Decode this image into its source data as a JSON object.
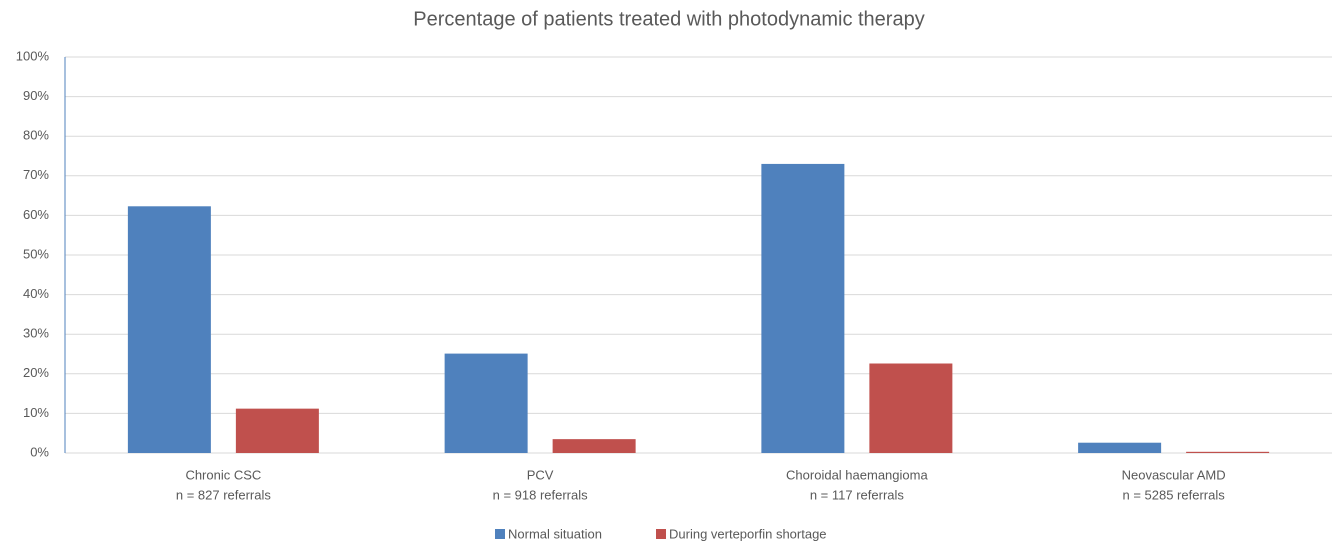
{
  "chart_data": {
    "type": "bar",
    "title": "Percentage of patients treated with photodynamic therapy",
    "categories": [
      [
        "Chronic CSC",
        "n = 827 referrals"
      ],
      [
        "PCV",
        "n = 918 referrals"
      ],
      [
        "Choroidal haemangioma",
        "n = 117 referrals"
      ],
      [
        "Neovascular AMD",
        "n = 5285 referrals"
      ]
    ],
    "series": [
      {
        "name": "Normal situation",
        "color": "#4f81bd",
        "values": [
          62.3,
          25.1,
          73.0,
          2.6
        ]
      },
      {
        "name": "During verteporfin shortage",
        "color": "#c0504d",
        "values": [
          11.2,
          3.5,
          22.6,
          0.3
        ]
      }
    ],
    "ylim": [
      0,
      100
    ],
    "yticks": [
      {
        "value": 0,
        "label": "0%"
      },
      {
        "value": 10,
        "label": "10%"
      },
      {
        "value": 20,
        "label": "20%"
      },
      {
        "value": 30,
        "label": "30%"
      },
      {
        "value": 40,
        "label": "40%"
      },
      {
        "value": 50,
        "label": "50%"
      },
      {
        "value": 60,
        "label": "60%"
      },
      {
        "value": 70,
        "label": "70%"
      },
      {
        "value": 80,
        "label": "80%"
      },
      {
        "value": 90,
        "label": "90%"
      },
      {
        "value": 100,
        "label": "100%"
      }
    ],
    "grid": true,
    "legend": "bottom"
  }
}
